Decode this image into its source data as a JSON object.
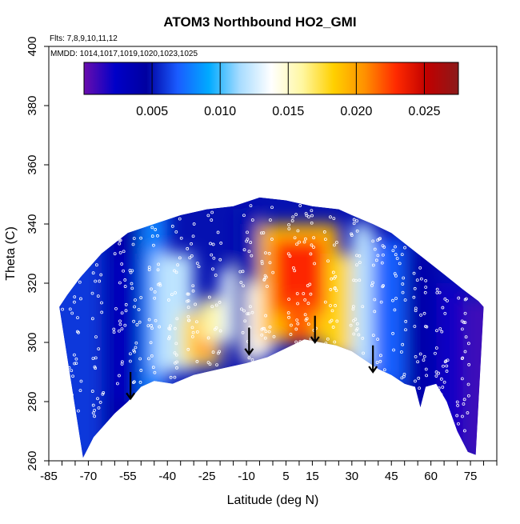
{
  "chart_data": {
    "type": "heatmap",
    "title": "ATOM3 Northbound HO2_GMI",
    "annotations": [
      "Flts: 7,8,9,10,11,12",
      "MMDD: 1014,1017,1019,1020,1023,1025"
    ],
    "xlabel": "Latitude (deg N)",
    "ylabel": "Theta (C)",
    "xlim": [
      -85,
      85
    ],
    "ylim": [
      260,
      400
    ],
    "x_ticks": [
      -85,
      -70,
      -55,
      -40,
      -25,
      -10,
      5,
      15,
      30,
      45,
      60,
      75
    ],
    "y_ticks": [
      260,
      280,
      300,
      320,
      340,
      360,
      380,
      400
    ],
    "colorbar": {
      "ticks": [
        0.005,
        0.01,
        0.015,
        0.02,
        0.025
      ],
      "range": [
        0.0,
        0.0275
      ],
      "colors": [
        "#6a0dad",
        "#0000c8",
        "#0000a0",
        "#1a5cff",
        "#00aaff",
        "#a8dcff",
        "#ffffff",
        "#fff7a0",
        "#ffd000",
        "#ff9000",
        "#ff2a00",
        "#c00000",
        "#8b1a1a"
      ]
    },
    "arrows": [
      {
        "lat": -54,
        "theta": 283
      },
      {
        "lat": -9,
        "theta": 298
      },
      {
        "lat": 16,
        "theta": 302
      },
      {
        "lat": 38,
        "theta": 292
      }
    ],
    "lower_boundary": [
      [
        -72,
        261
      ],
      [
        -68,
        268
      ],
      [
        -60,
        276
      ],
      [
        -55,
        280
      ],
      [
        -50,
        285
      ],
      [
        -45,
        287
      ],
      [
        -38,
        286
      ],
      [
        -30,
        289
      ],
      [
        -20,
        291
      ],
      [
        -10,
        293
      ],
      [
        -2,
        295
      ],
      [
        5,
        298
      ],
      [
        12,
        301
      ],
      [
        18,
        300
      ],
      [
        24,
        299
      ],
      [
        30,
        297
      ],
      [
        35,
        294
      ],
      [
        40,
        291
      ],
      [
        45,
        289
      ],
      [
        50,
        286
      ],
      [
        54,
        285
      ],
      [
        56,
        278
      ],
      [
        58,
        285
      ],
      [
        62,
        286
      ],
      [
        66,
        280
      ],
      [
        70,
        270
      ],
      [
        74,
        263
      ],
      [
        77,
        262
      ]
    ],
    "upper_boundary": [
      [
        -81,
        312
      ],
      [
        -78,
        316
      ],
      [
        -73,
        322
      ],
      [
        -65,
        330
      ],
      [
        -55,
        337
      ],
      [
        -45,
        340
      ],
      [
        -35,
        343
      ],
      [
        -25,
        345
      ],
      [
        -15,
        346
      ],
      [
        -5,
        349
      ],
      [
        5,
        348
      ],
      [
        15,
        346
      ],
      [
        25,
        345
      ],
      [
        30,
        343
      ],
      [
        38,
        340
      ],
      [
        45,
        337
      ],
      [
        55,
        330
      ],
      [
        65,
        323
      ],
      [
        72,
        318
      ],
      [
        78,
        314
      ],
      [
        80,
        312
      ]
    ],
    "regions": [
      {
        "lat": [
          -85,
          -65
        ],
        "theta": [
          260,
          340
        ],
        "value": 0.006
      },
      {
        "lat": [
          -65,
          -50
        ],
        "theta": [
          260,
          340
        ],
        "value": 0.004
      },
      {
        "lat": [
          -62,
          -50
        ],
        "theta": [
          280,
          330
        ],
        "value": 0.003
      },
      {
        "lat": [
          -50,
          -40
        ],
        "theta": [
          280,
          345
        ],
        "value": 0.008
      },
      {
        "lat": [
          -45,
          -30
        ],
        "theta": [
          290,
          330
        ],
        "value": 0.012
      },
      {
        "lat": [
          -35,
          -20
        ],
        "theta": [
          292,
          310
        ],
        "value": 0.017
      },
      {
        "lat": [
          -30,
          -22
        ],
        "theta": [
          295,
          308
        ],
        "value": 0.021
      },
      {
        "lat": [
          -28,
          -15
        ],
        "theta": [
          300,
          315
        ],
        "value": 0.016
      },
      {
        "lat": [
          -20,
          -12
        ],
        "theta": [
          300,
          325
        ],
        "value": 0.013
      },
      {
        "lat": [
          -15,
          -5
        ],
        "theta": [
          290,
          345
        ],
        "value": 0.005
      },
      {
        "lat": [
          -10,
          0
        ],
        "theta": [
          295,
          320
        ],
        "value": 0.014
      },
      {
        "lat": [
          -5,
          25
        ],
        "theta": [
          300,
          340
        ],
        "value": 0.019
      },
      {
        "lat": [
          0,
          20
        ],
        "theta": [
          310,
          335
        ],
        "value": 0.023
      },
      {
        "lat": [
          5,
          15
        ],
        "theta": [
          300,
          315
        ],
        "value": 0.022
      },
      {
        "lat": [
          20,
          30
        ],
        "theta": [
          295,
          330
        ],
        "value": 0.018
      },
      {
        "lat": [
          30,
          38
        ],
        "theta": [
          290,
          340
        ],
        "value": 0.012
      },
      {
        "lat": [
          38,
          50
        ],
        "theta": [
          285,
          335
        ],
        "value": 0.007
      },
      {
        "lat": [
          50,
          62
        ],
        "theta": [
          280,
          330
        ],
        "value": 0.004
      },
      {
        "lat": [
          62,
          72
        ],
        "theta": [
          265,
          320
        ],
        "value": 0.002
      },
      {
        "lat": [
          72,
          85
        ],
        "theta": [
          260,
          315
        ],
        "value": 0.001
      }
    ]
  }
}
